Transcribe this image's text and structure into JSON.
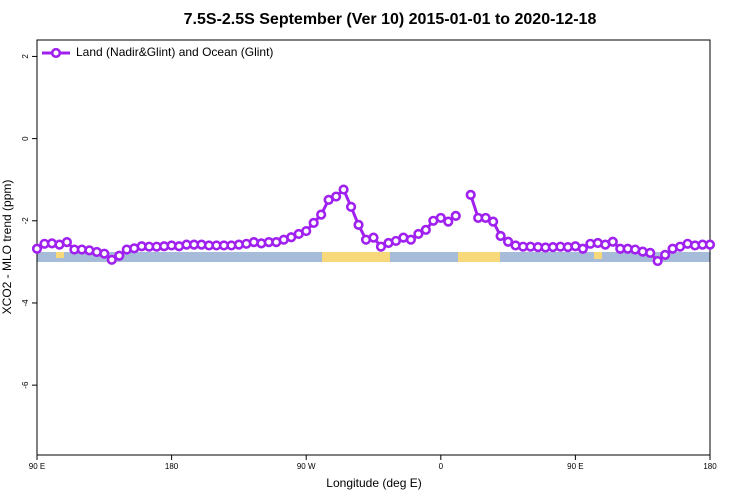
{
  "chart_data": {
    "type": "line",
    "title": "7.5S-2.5S September (Ver 10)   2015-01-01 to 2020-12-18",
    "x_label": "Longitude (deg E)",
    "y_label": "XCO2 - MLO trend (ppm)",
    "x": [
      90,
      95,
      100,
      105,
      110,
      115,
      120,
      125,
      130,
      135,
      140,
      145,
      150,
      155,
      160,
      165,
      170,
      175,
      180,
      185,
      190,
      195,
      200,
      205,
      210,
      215,
      220,
      225,
      230,
      235,
      240,
      245,
      250,
      255,
      260,
      265,
      270,
      275,
      280,
      285,
      290,
      295,
      300,
      305,
      310,
      315,
      320,
      325,
      330,
      335,
      340,
      345,
      350,
      355,
      360,
      365,
      370,
      375,
      380,
      385,
      390,
      395,
      400,
      405,
      410,
      415,
      420,
      425,
      430,
      435,
      440,
      445,
      450,
      455,
      460,
      465,
      470,
      475,
      480,
      485,
      490,
      495,
      500,
      505,
      510,
      515,
      520,
      525,
      530,
      535,
      540
    ],
    "series": [
      {
        "name": "Land (Nadir&Glint) and Ocean (Glint)",
        "color": "#a020f0",
        "values": [
          -2.68,
          -2.56,
          -2.55,
          -2.58,
          -2.52,
          -2.7,
          -2.7,
          -2.72,
          -2.76,
          -2.8,
          -2.95,
          -2.85,
          -2.7,
          -2.67,
          -2.62,
          -2.63,
          -2.63,
          -2.62,
          -2.6,
          -2.62,
          -2.58,
          -2.58,
          -2.58,
          -2.6,
          -2.6,
          -2.6,
          -2.6,
          -2.58,
          -2.56,
          -2.52,
          -2.55,
          -2.52,
          -2.52,
          -2.46,
          -2.4,
          -2.32,
          -2.25,
          -2.05,
          -1.85,
          -1.49,
          -1.41,
          -1.24,
          -1.66,
          -2.1,
          -2.46,
          -2.41,
          -2.63,
          -2.54,
          -2.49,
          -2.41,
          -2.46,
          -2.32,
          -2.22,
          -2.0,
          -1.93,
          -2.02,
          -1.88,
          null,
          -1.37,
          -1.93,
          -1.93,
          -2.02,
          -2.37,
          -2.51,
          -2.6,
          -2.63,
          -2.63,
          -2.64,
          -2.65,
          -2.64,
          -2.63,
          -2.64,
          -2.62,
          -2.68,
          -2.56,
          -2.54,
          -2.58,
          -2.51,
          -2.68,
          -2.68,
          -2.7,
          -2.75,
          -2.78,
          -2.98,
          -2.83,
          -2.68,
          -2.63,
          -2.56,
          -2.6,
          -2.58,
          -2.58
        ]
      }
    ],
    "xlim": [
      90,
      540
    ],
    "xticks": [
      {
        "value": 90,
        "label": "90 E"
      },
      180,
      {
        "value": 270,
        "label": "90 W"
      },
      {
        "value": 360,
        "label": "0"
      },
      {
        "value": 450,
        "label": "90 E"
      },
      {
        "value": 540,
        "label": "180"
      }
    ],
    "ylim": [
      -7.7,
      2.4
    ],
    "yticks": [
      -6,
      -4,
      -2,
      0,
      2
    ],
    "legend": "top-left"
  }
}
